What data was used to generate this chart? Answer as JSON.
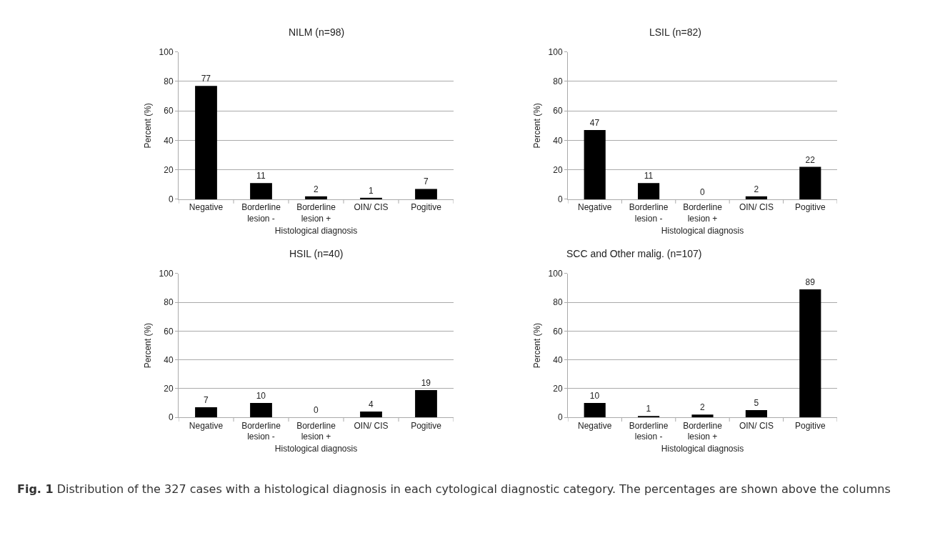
{
  "chart_data": [
    {
      "type": "bar",
      "title": "NILM (n=98)",
      "xlabel": "Histological diagnosis",
      "ylabel": "Percent (%)",
      "categories": [
        "Negative",
        "Borderline\nlesion -",
        "Borderline\nlesion +",
        "OIN/ CIS",
        "Pogitive"
      ],
      "values": [
        77,
        11,
        2,
        1,
        7
      ],
      "color": "#000000",
      "ylim": [
        0,
        100
      ],
      "yticks": [
        0,
        20,
        40,
        60,
        80,
        100
      ],
      "grid": "y",
      "data_labels": true,
      "annotations": [
        "**Fig. 1** Distribution of the 327 cases with a histological diagnosis in each cytological diagnostic category. The percentages are shown above the columns"
      ]
    },
    {
      "type": "bar",
      "title": "LSIL (n=82)",
      "xlabel": "Histological diagnosis",
      "ylabel": "Percent (%)",
      "categories": [
        "Negative",
        "Borderline\nlesion -",
        "Borderline\nlesion +",
        "OIN/ CIS",
        "Pogitive"
      ],
      "values": [
        47,
        11,
        0,
        2,
        22
      ],
      "color": "#000000",
      "ylim": [
        0,
        100
      ],
      "yticks": [
        0,
        20,
        40,
        60,
        80,
        100
      ],
      "grid": "y",
      "data_labels": true
    },
    {
      "type": "bar",
      "title": "HSIL (n=40)",
      "xlabel": "Histological diagnosis",
      "ylabel": "Percent (%)",
      "categories": [
        "Negative",
        "Borderline\nlesion -",
        "Borderline\nlesion +",
        "OIN/ CIS",
        "Pogitive"
      ],
      "values": [
        7,
        10,
        0,
        4,
        19
      ],
      "color": "#000000",
      "ylim": [
        0,
        100
      ],
      "yticks": [
        0,
        20,
        40,
        60,
        80,
        100
      ],
      "grid": "y",
      "data_labels": true
    },
    {
      "type": "bar",
      "title": "SCC and Other malig. (n=107)",
      "xlabel": "Histological diagnosis",
      "ylabel": "Percent (%)",
      "categories": [
        "Negative",
        "Borderline\nlesion -",
        "Borderline\nlesion +",
        "OIN/ CIS",
        "Pogitive"
      ],
      "values": [
        10,
        1,
        2,
        5,
        89
      ],
      "color": "#000000",
      "ylim": [
        0,
        100
      ],
      "yticks": [
        0,
        20,
        40,
        60,
        80,
        100
      ],
      "grid": "y",
      "data_labels": true
    }
  ]
}
